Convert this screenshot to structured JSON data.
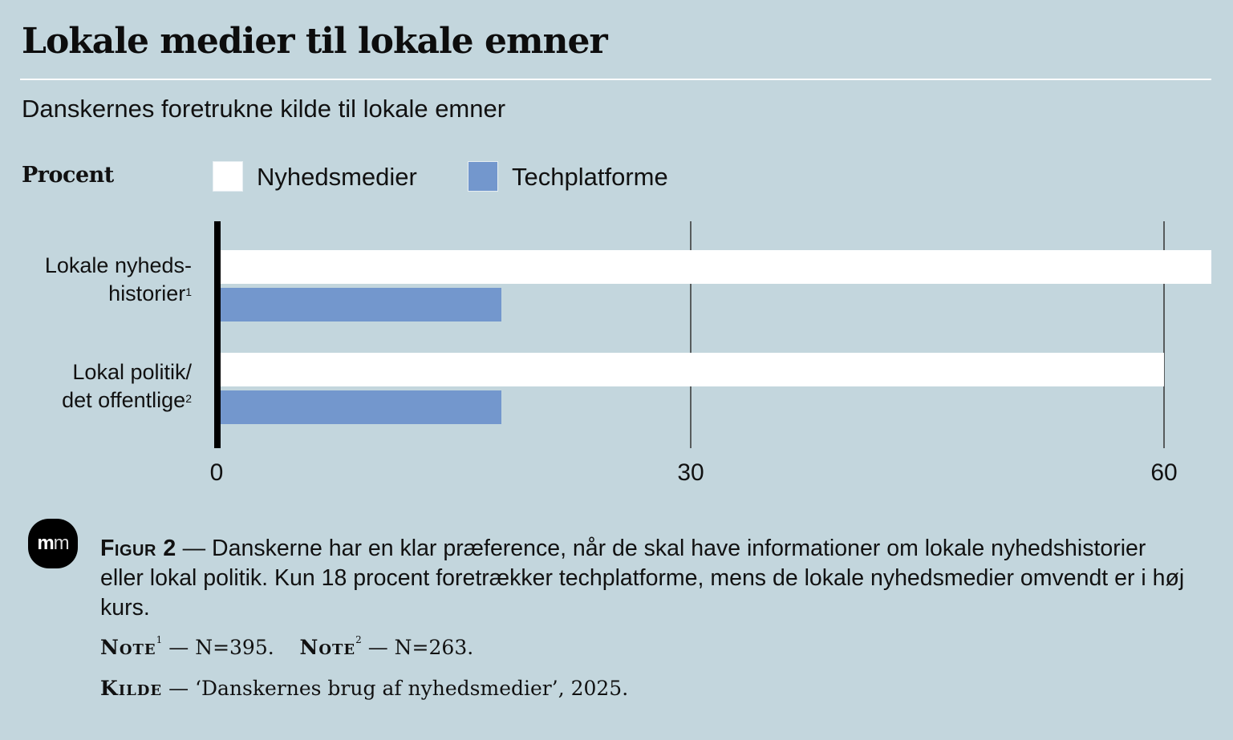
{
  "header": {
    "title": "Lokale medier til lokale emner",
    "subtitle": "Danskernes foretrukne kilde til lokale emner"
  },
  "logo": {
    "bold": "m",
    "light": "m"
  },
  "caption": {
    "figure_label": "Figur 2",
    "dash": "—",
    "text": "Danskerne har en klar præference, når de skal have informationer om lokale nyhedshistorier eller lokal politik. Kun 18 procent foretrækker techplatforme, mens de lokale nyhedsmedier omvendt er i høj kurs."
  },
  "notes": {
    "note1_label": "Note",
    "note1_sup": "1",
    "note1_text": "— N=395.",
    "note2_label": "Note",
    "note2_sup": "2",
    "note2_text": "— N=263.",
    "source_label": "Kilde",
    "source_text": "— ‘Danskernes brug af nyhedsmedier’, 2025."
  },
  "colors": {
    "background": "#c3d6dd",
    "nyhedsmedier": "#ffffff",
    "techplatforme": "#7397cd",
    "axis": "#000000",
    "grid": "#2a2a2a"
  },
  "chart_data": {
    "type": "bar",
    "orientation": "horizontal",
    "title": "Lokale medier til lokale emner",
    "subtitle": "Danskernes foretrukne kilde til lokale emner",
    "unit_label": "Procent",
    "categories": [
      {
        "line1": "Lokale nyheds-",
        "line2": "historier",
        "sup": "1"
      },
      {
        "line1": "Lokal politik/",
        "line2": "det offentlige",
        "sup": "2"
      }
    ],
    "series": [
      {
        "name": "Nyhedsmedier",
        "color": "#ffffff",
        "values": [
          63,
          60
        ]
      },
      {
        "name": "Techplatforme",
        "color": "#7397cd",
        "values": [
          18,
          18
        ]
      }
    ],
    "xlim": [
      0,
      63
    ],
    "ticks": [
      0,
      30,
      60
    ],
    "tick_labels": [
      "0",
      "30",
      "60"
    ],
    "grid": true,
    "legend_position": "top-left"
  }
}
